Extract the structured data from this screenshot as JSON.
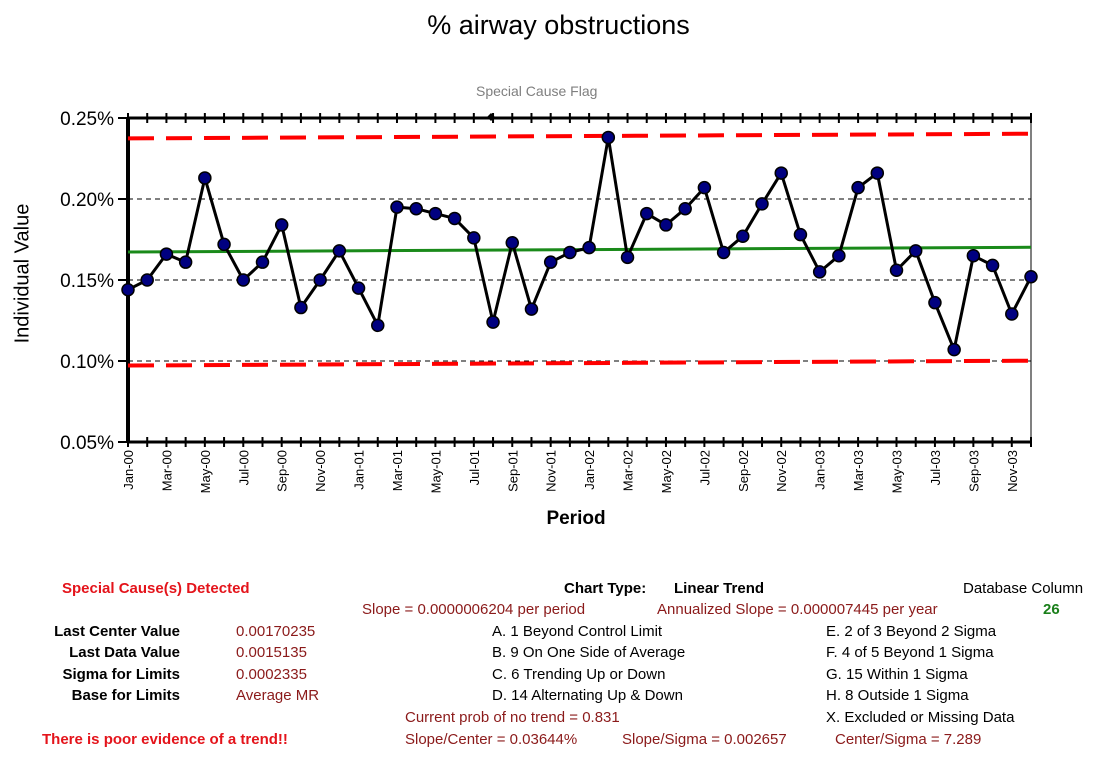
{
  "chart_data": {
    "type": "line",
    "title": "% airway obstructions",
    "flag_label": "Special Cause Flag",
    "ylabel": "Individual Value",
    "xlabel": "Period",
    "ylim": [
      0.0005,
      0.0025
    ],
    "y_ticks": [
      "0.05%",
      "0.10%",
      "0.15%",
      "0.20%",
      "0.25%"
    ],
    "x_ticks": [
      "Jan-00",
      "Mar-00",
      "May-00",
      "Jul-00",
      "Sep-00",
      "Nov-00",
      "Jan-01",
      "Mar-01",
      "May-01",
      "Jul-01",
      "Sep-01",
      "Nov-01",
      "Jan-02",
      "Mar-02",
      "May-02",
      "Jul-02",
      "Sep-02",
      "Nov-02",
      "Jan-03",
      "Mar-03",
      "May-03",
      "Jul-03",
      "Sep-03",
      "Nov-03"
    ],
    "grid": "horizontal dashed",
    "series": [
      {
        "values": [
          0.00144,
          0.0015,
          0.00166,
          0.00161,
          0.00213,
          0.00172,
          0.0015,
          0.00161,
          0.00184,
          0.00133,
          0.0015,
          0.00168,
          0.00145,
          0.00122,
          0.00195,
          0.00194,
          0.00191,
          0.00188,
          0.00176,
          0.00124,
          0.00173,
          0.00132,
          0.00161,
          0.00167,
          0.0017,
          0.00238,
          0.00164,
          0.00191,
          0.00184,
          0.00194,
          0.00207,
          0.00167,
          0.00177,
          0.00197,
          0.00216,
          0.00178,
          0.00155,
          0.00165,
          0.00207,
          0.00216,
          0.00156,
          0.00168,
          0.00136,
          0.00107,
          0.00165,
          0.00159,
          0.00129,
          0.00152
        ]
      }
    ],
    "center_line": {
      "start": 0.001673,
      "end": 0.001702
    },
    "ucl": {
      "start": 0.002374,
      "end": 0.002403
    },
    "lcl": {
      "start": 0.000972,
      "end": 0.001002
    },
    "colors": {
      "line": "#000000",
      "marker_fill": "#000080",
      "center": "#1a8a1a",
      "limits": "#ff0000"
    }
  },
  "stats": {
    "special_causes": "Special Cause(s) Detected",
    "chart_type_label": "Chart Type:",
    "chart_type_value": "Linear Trend",
    "db_column_label": "Database Column",
    "db_column_value": "26",
    "slope": "Slope = 0.0000006204 per period",
    "annualized_slope": "Annualized Slope = 0.000007445 per year",
    "last_center_label": "Last Center Value",
    "last_center_value": "0.00170235",
    "last_data_label": "Last Data Value",
    "last_data_value": "0.0015135",
    "sigma_label": "Sigma for Limits",
    "sigma_value": "0.0002335",
    "base_label": "Base for Limits",
    "base_value": "Average MR",
    "rule_a": "A. 1 Beyond Control Limit",
    "rule_b": "B. 9 On One Side of Average",
    "rule_c": "C. 6 Trending Up or Down",
    "rule_d": "D. 14 Alternating  Up & Down",
    "rule_e": "E.  2 of 3 Beyond 2 Sigma",
    "rule_f": "F.  4 of 5 Beyond 1 Sigma",
    "rule_g": "G.  15 Within 1 Sigma",
    "rule_h": "H.  8 Outside 1 Sigma",
    "rule_x": "X.  Excluded or Missing Data",
    "prob_no_trend": "Current prob of no trend = 0.831",
    "slope_center": "Slope/Center = 0.03644%",
    "slope_sigma": "Slope/Sigma = 0.002657",
    "center_sigma": "Center/Sigma = 7.289",
    "trend_note": "There is poor evidence of a trend!!"
  }
}
